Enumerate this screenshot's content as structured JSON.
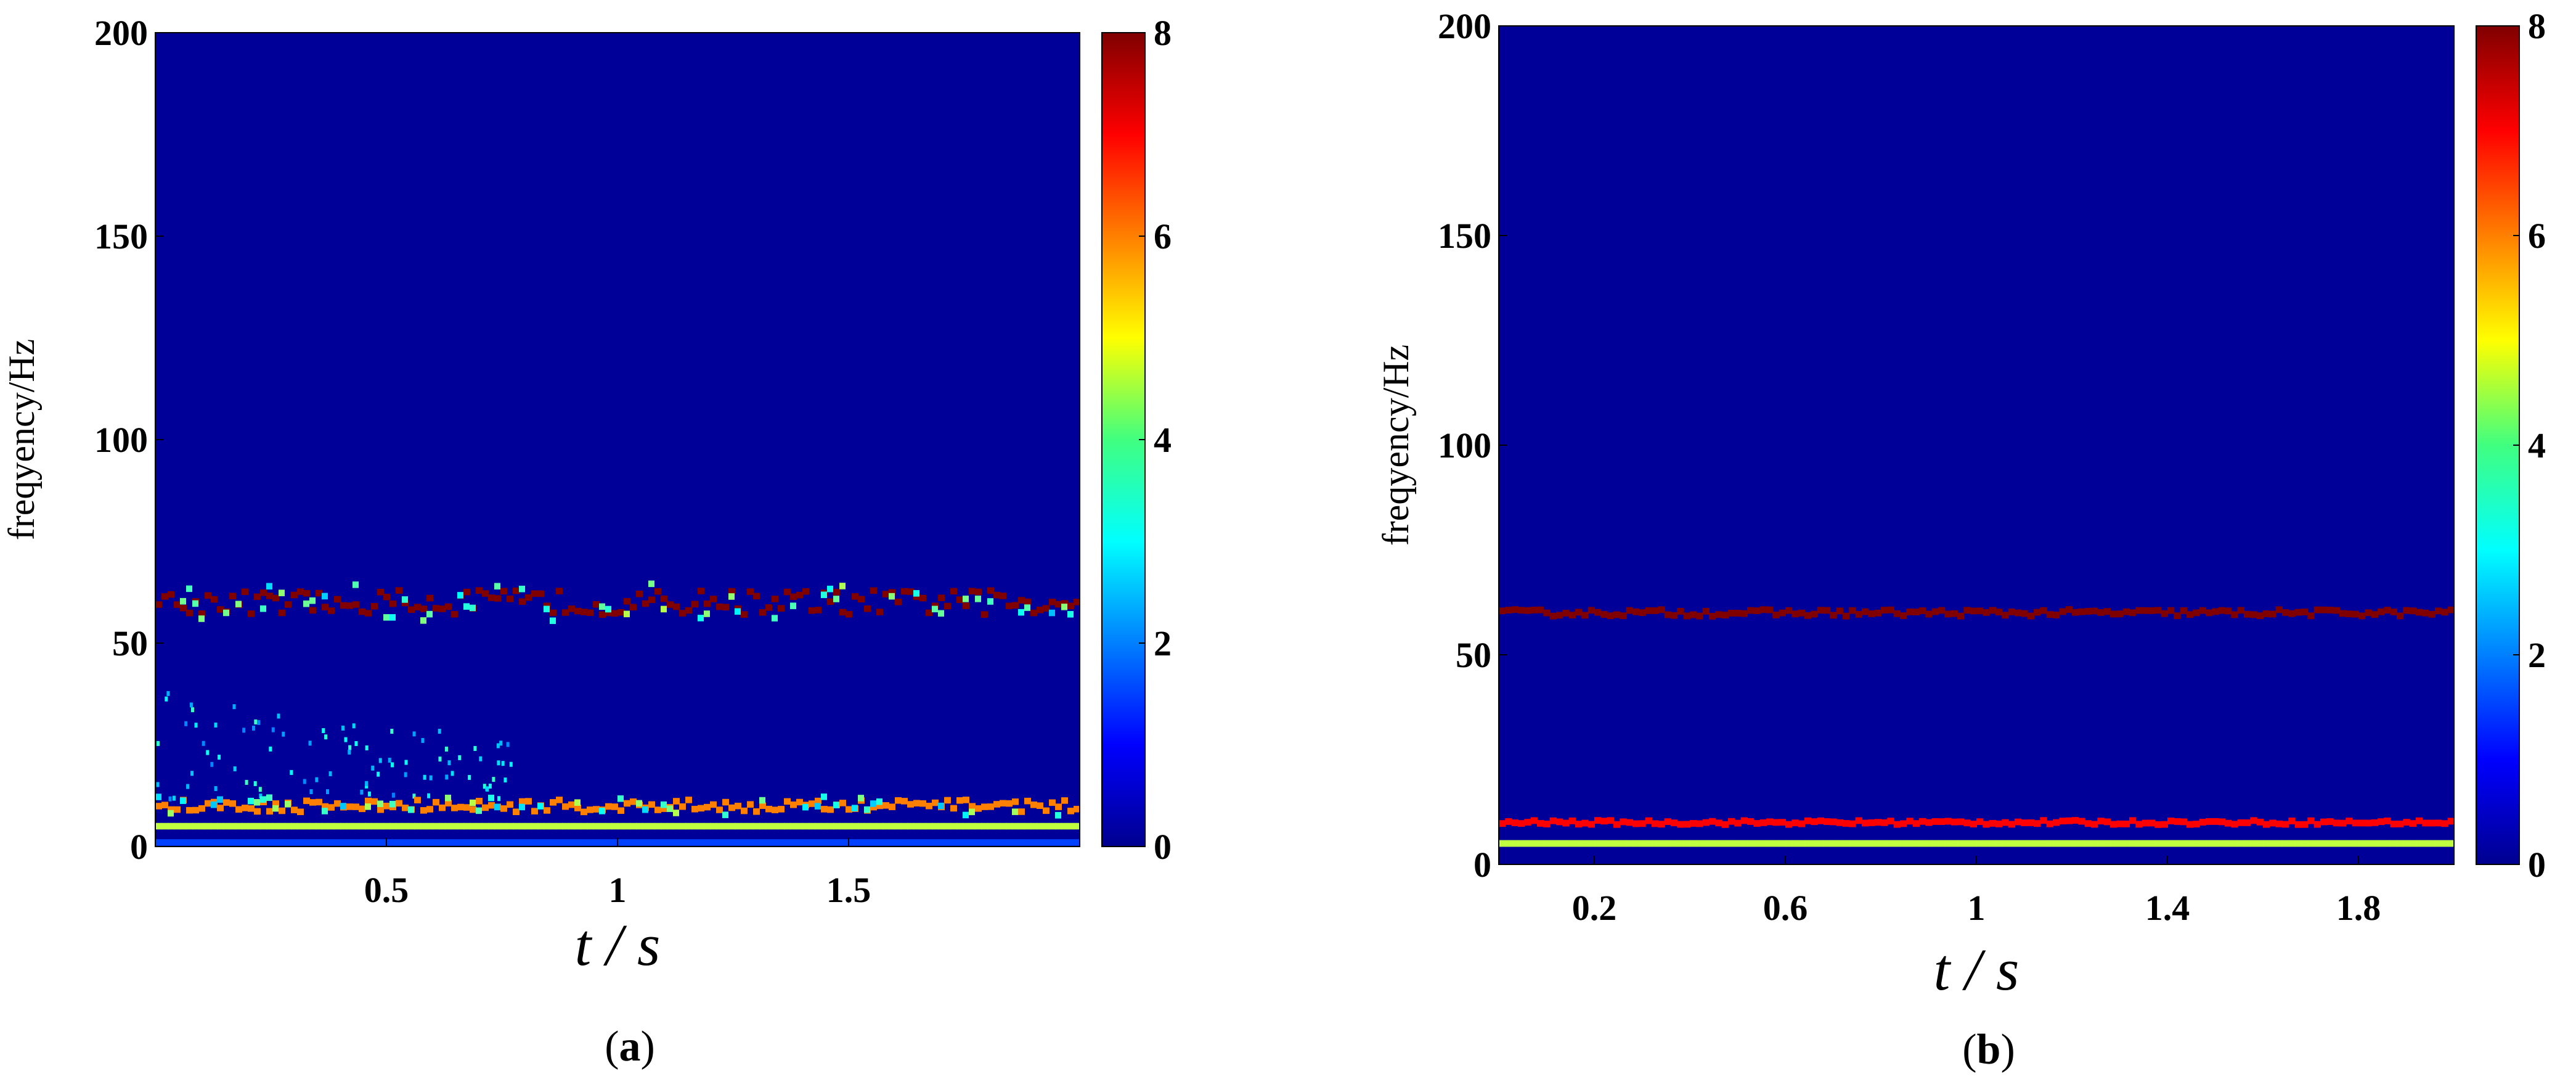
{
  "chart_data": [
    {
      "type": "heatmap",
      "panel": "a",
      "caption_open": "(",
      "caption_letter": "a",
      "caption_close": ")",
      "xlabel_t": "t",
      "xlabel_sep": " / ",
      "xlabel_s": "s",
      "ylabel": "freqyency/Hz",
      "xlim": [
        0,
        2
      ],
      "ylim": [
        0,
        200
      ],
      "xticks": [
        0.5,
        1,
        1.5
      ],
      "xtick_labels": [
        "0.5",
        "1",
        "1.5"
      ],
      "yticks": [
        0,
        50,
        100,
        150,
        200
      ],
      "ytick_labels": [
        "0",
        "50",
        "100",
        "150",
        "200"
      ],
      "colorbar": {
        "range": [
          0,
          8
        ],
        "ticks": [
          0,
          2,
          4,
          6,
          8
        ],
        "tick_labels": [
          "0",
          "2",
          "4",
          "6",
          "8"
        ],
        "colormap": "jet"
      },
      "background_value": 0.2,
      "ridges": [
        {
          "freq": 60,
          "value": 8,
          "t_range": [
            0,
            2
          ],
          "jitter_hz": 3
        },
        {
          "freq": 10,
          "value": 6,
          "t_range": [
            0,
            2
          ],
          "jitter_hz": 1.5
        },
        {
          "freq": 5,
          "value": 4.5,
          "t_range": [
            0,
            2
          ],
          "jitter_hz": 0
        },
        {
          "freq": 1,
          "value": 1.5,
          "t_range": [
            0,
            2
          ],
          "jitter_hz": 0
        }
      ],
      "scatter_region": {
        "t_range": [
          0,
          0.8
        ],
        "f_range": [
          12,
          40
        ],
        "value": 2
      }
    },
    {
      "type": "heatmap",
      "panel": "b",
      "caption_open": "(",
      "caption_letter": "b",
      "caption_close": ")",
      "xlabel_t": "t",
      "xlabel_sep": " / ",
      "xlabel_s": "s",
      "ylabel": "freqyency/Hz",
      "xlim": [
        0,
        2
      ],
      "ylim": [
        0,
        200
      ],
      "xticks": [
        0.2,
        0.6,
        1,
        1.4,
        1.8
      ],
      "xtick_labels": [
        "0.2",
        "0.6",
        "1",
        "1.4",
        "1.8"
      ],
      "yticks": [
        0,
        50,
        100,
        150,
        200
      ],
      "ytick_labels": [
        "0",
        "50",
        "100",
        "150",
        "200"
      ],
      "colorbar": {
        "range": [
          0,
          8
        ],
        "ticks": [
          0,
          2,
          4,
          6,
          8
        ],
        "tick_labels": [
          "0",
          "2",
          "4",
          "6",
          "8"
        ],
        "colormap": "jet"
      },
      "background_value": 0.2,
      "ridges": [
        {
          "freq": 60,
          "value": 8,
          "t_range": [
            0,
            2
          ],
          "jitter_hz": 0.8
        },
        {
          "freq": 10,
          "value": 7,
          "t_range": [
            0,
            2
          ],
          "jitter_hz": 0.5
        },
        {
          "freq": 5,
          "value": 4.5,
          "t_range": [
            0,
            2
          ],
          "jitter_hz": 0
        }
      ]
    }
  ]
}
